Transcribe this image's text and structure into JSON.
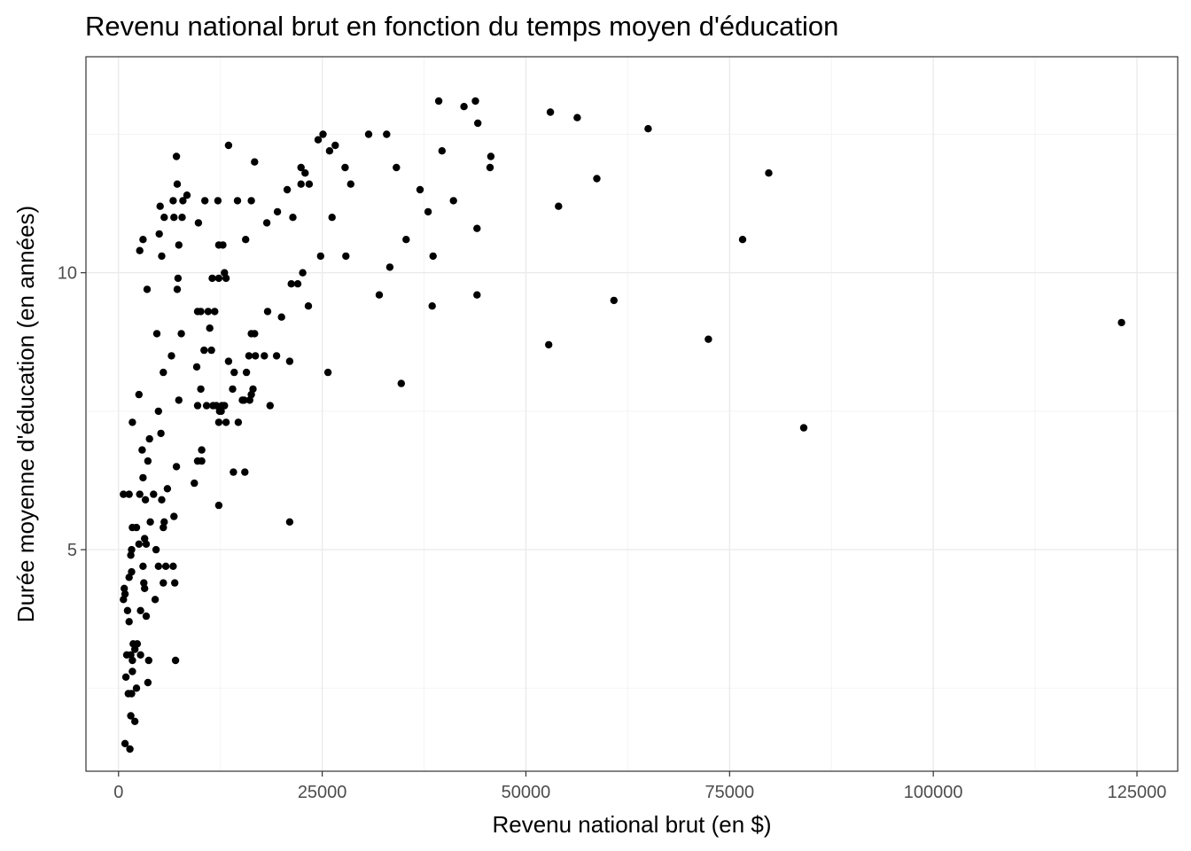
{
  "chart_data": {
    "type": "scatter",
    "title": "Revenu national brut en fonction du temps moyen d'éducation",
    "xlabel": "Revenu national brut (en $)",
    "ylabel": "Durée moyenne d'éducation (en années)",
    "xlim": [
      -4000,
      130000
    ],
    "ylim": [
      1.0,
      13.9
    ],
    "xticks": [
      0,
      25000,
      50000,
      75000,
      100000,
      125000
    ],
    "yticks": [
      5,
      10
    ],
    "xtick_labels": [
      "0",
      "25000",
      "50000",
      "75000",
      "100000",
      "125000"
    ],
    "ytick_labels": [
      "5",
      "10"
    ],
    "grid": true,
    "legend": "none",
    "point_color": "#000000",
    "points": [
      [
        600,
        6.0
      ],
      [
        1300,
        6.0
      ],
      [
        700,
        4.3
      ],
      [
        600,
        4.1
      ],
      [
        800,
        4.2
      ],
      [
        1100,
        3.9
      ],
      [
        1300,
        3.7
      ],
      [
        1000,
        3.1
      ],
      [
        1500,
        3.1
      ],
      [
        900,
        2.7
      ],
      [
        1200,
        2.4
      ],
      [
        1600,
        2.4
      ],
      [
        1700,
        2.8
      ],
      [
        1500,
        2.0
      ],
      [
        2000,
        1.9
      ],
      [
        800,
        1.5
      ],
      [
        1400,
        1.4
      ],
      [
        1700,
        3.0
      ],
      [
        2000,
        3.2
      ],
      [
        1300,
        4.5
      ],
      [
        1600,
        4.6
      ],
      [
        1500,
        4.9
      ],
      [
        1600,
        5.0
      ],
      [
        1700,
        5.4
      ],
      [
        2200,
        5.4
      ],
      [
        1800,
        3.3
      ],
      [
        2300,
        3.3
      ],
      [
        2200,
        2.5
      ],
      [
        3600,
        2.6
      ],
      [
        3700,
        3.0
      ],
      [
        2700,
        3.1
      ],
      [
        3000,
        4.7
      ],
      [
        3100,
        4.4
      ],
      [
        3200,
        4.3
      ],
      [
        3400,
        3.8
      ],
      [
        2700,
        3.9
      ],
      [
        2500,
        5.1
      ],
      [
        3200,
        5.2
      ],
      [
        2600,
        6.0
      ],
      [
        3000,
        6.3
      ],
      [
        2900,
        6.8
      ],
      [
        3600,
        6.6
      ],
      [
        3800,
        7.0
      ],
      [
        3300,
        5.9
      ],
      [
        3900,
        5.5
      ],
      [
        1700,
        7.3
      ],
      [
        2500,
        7.8
      ],
      [
        2600,
        10.4
      ],
      [
        3000,
        10.6
      ],
      [
        3500,
        9.7
      ],
      [
        3400,
        5.1
      ],
      [
        4300,
        6.0
      ],
      [
        4600,
        5.0
      ],
      [
        4900,
        4.7
      ],
      [
        4500,
        4.1
      ],
      [
        5500,
        4.4
      ],
      [
        5800,
        4.7
      ],
      [
        6000,
        6.1
      ],
      [
        5300,
        5.9
      ],
      [
        5500,
        5.4
      ],
      [
        5600,
        5.5
      ],
      [
        6700,
        4.7
      ],
      [
        6900,
        4.4
      ],
      [
        6800,
        5.6
      ],
      [
        5200,
        7.1
      ],
      [
        5500,
        8.2
      ],
      [
        4900,
        7.5
      ],
      [
        4700,
        8.9
      ],
      [
        6500,
        8.5
      ],
      [
        7000,
        3.0
      ],
      [
        7100,
        6.5
      ],
      [
        7400,
        7.7
      ],
      [
        7700,
        8.9
      ],
      [
        7200,
        9.7
      ],
      [
        7300,
        9.9
      ],
      [
        7400,
        10.5
      ],
      [
        6800,
        11.0
      ],
      [
        7200,
        11.6
      ],
      [
        5000,
        10.7
      ],
      [
        5300,
        10.3
      ],
      [
        5600,
        11.0
      ],
      [
        6700,
        11.3
      ],
      [
        5100,
        11.2
      ],
      [
        7800,
        11.0
      ],
      [
        7900,
        11.3
      ],
      [
        7100,
        12.1
      ],
      [
        9300,
        6.2
      ],
      [
        9700,
        6.6
      ],
      [
        10200,
        6.8
      ],
      [
        10200,
        6.6
      ],
      [
        9600,
        8.3
      ],
      [
        9700,
        7.6
      ],
      [
        10100,
        7.9
      ],
      [
        10500,
        8.6
      ],
      [
        10800,
        7.6
      ],
      [
        11400,
        8.6
      ],
      [
        11200,
        9.0
      ],
      [
        11000,
        9.3
      ],
      [
        9700,
        9.3
      ],
      [
        10100,
        9.3
      ],
      [
        11800,
        9.3
      ],
      [
        11600,
        7.6
      ],
      [
        12400,
        7.5
      ],
      [
        12000,
        7.6
      ],
      [
        12300,
        7.3
      ],
      [
        12600,
        7.5
      ],
      [
        12700,
        7.6
      ],
      [
        13000,
        7.6
      ],
      [
        12300,
        5.8
      ],
      [
        13200,
        7.3
      ],
      [
        13500,
        8.4
      ],
      [
        14000,
        7.9
      ],
      [
        14200,
        8.2
      ],
      [
        14100,
        6.4
      ],
      [
        14700,
        7.3
      ],
      [
        15200,
        7.7
      ],
      [
        15400,
        7.7
      ],
      [
        15700,
        8.2
      ],
      [
        15500,
        6.4
      ],
      [
        16100,
        7.7
      ],
      [
        16300,
        7.8
      ],
      [
        16500,
        7.9
      ],
      [
        16000,
        8.5
      ],
      [
        16300,
        8.9
      ],
      [
        16700,
        8.9
      ],
      [
        16800,
        8.5
      ],
      [
        17900,
        8.5
      ],
      [
        18600,
        7.6
      ],
      [
        19400,
        8.5
      ],
      [
        21000,
        8.4
      ],
      [
        11500,
        9.9
      ],
      [
        12300,
        9.9
      ],
      [
        13000,
        10.0
      ],
      [
        13200,
        9.9
      ],
      [
        10600,
        11.3
      ],
      [
        12300,
        10.5
      ],
      [
        12800,
        10.5
      ],
      [
        12200,
        11.3
      ],
      [
        9800,
        10.9
      ],
      [
        8400,
        11.4
      ],
      [
        13500,
        12.3
      ],
      [
        14600,
        11.3
      ],
      [
        15600,
        10.6
      ],
      [
        16300,
        11.3
      ],
      [
        16700,
        12.0
      ],
      [
        18300,
        9.3
      ],
      [
        19500,
        11.1
      ],
      [
        20000,
        9.2
      ],
      [
        18200,
        10.9
      ],
      [
        20700,
        11.5
      ],
      [
        21200,
        9.8
      ],
      [
        21400,
        11.0
      ],
      [
        22000,
        9.8
      ],
      [
        22600,
        10.0
      ],
      [
        22400,
        11.6
      ],
      [
        22400,
        11.9
      ],
      [
        22900,
        11.8
      ],
      [
        23400,
        11.6
      ],
      [
        23300,
        9.4
      ],
      [
        21000,
        5.5
      ],
      [
        24500,
        12.4
      ],
      [
        24800,
        10.3
      ],
      [
        25100,
        12.5
      ],
      [
        25700,
        8.2
      ],
      [
        25900,
        12.2
      ],
      [
        26200,
        11.0
      ],
      [
        26600,
        12.3
      ],
      [
        27800,
        11.9
      ],
      [
        27900,
        10.3
      ],
      [
        28500,
        11.6
      ],
      [
        30700,
        12.5
      ],
      [
        32000,
        9.6
      ],
      [
        32900,
        12.5
      ],
      [
        33300,
        10.1
      ],
      [
        34100,
        11.9
      ],
      [
        34700,
        8.0
      ],
      [
        35300,
        10.6
      ],
      [
        37000,
        11.5
      ],
      [
        38000,
        11.1
      ],
      [
        38600,
        10.3
      ],
      [
        38500,
        9.4
      ],
      [
        39300,
        13.1
      ],
      [
        39700,
        12.2
      ],
      [
        41100,
        11.3
      ],
      [
        42400,
        13.0
      ],
      [
        43800,
        13.1
      ],
      [
        44100,
        12.7
      ],
      [
        44000,
        10.8
      ],
      [
        44000,
        9.6
      ],
      [
        45600,
        11.9
      ],
      [
        45700,
        12.1
      ],
      [
        52800,
        8.7
      ],
      [
        53000,
        12.9
      ],
      [
        54000,
        11.2
      ],
      [
        56300,
        12.8
      ],
      [
        58700,
        11.7
      ],
      [
        60800,
        9.5
      ],
      [
        65000,
        12.6
      ],
      [
        72400,
        8.8
      ],
      [
        76600,
        10.6
      ],
      [
        79800,
        11.8
      ],
      [
        84100,
        7.2
      ],
      [
        123100,
        9.1
      ]
    ]
  }
}
